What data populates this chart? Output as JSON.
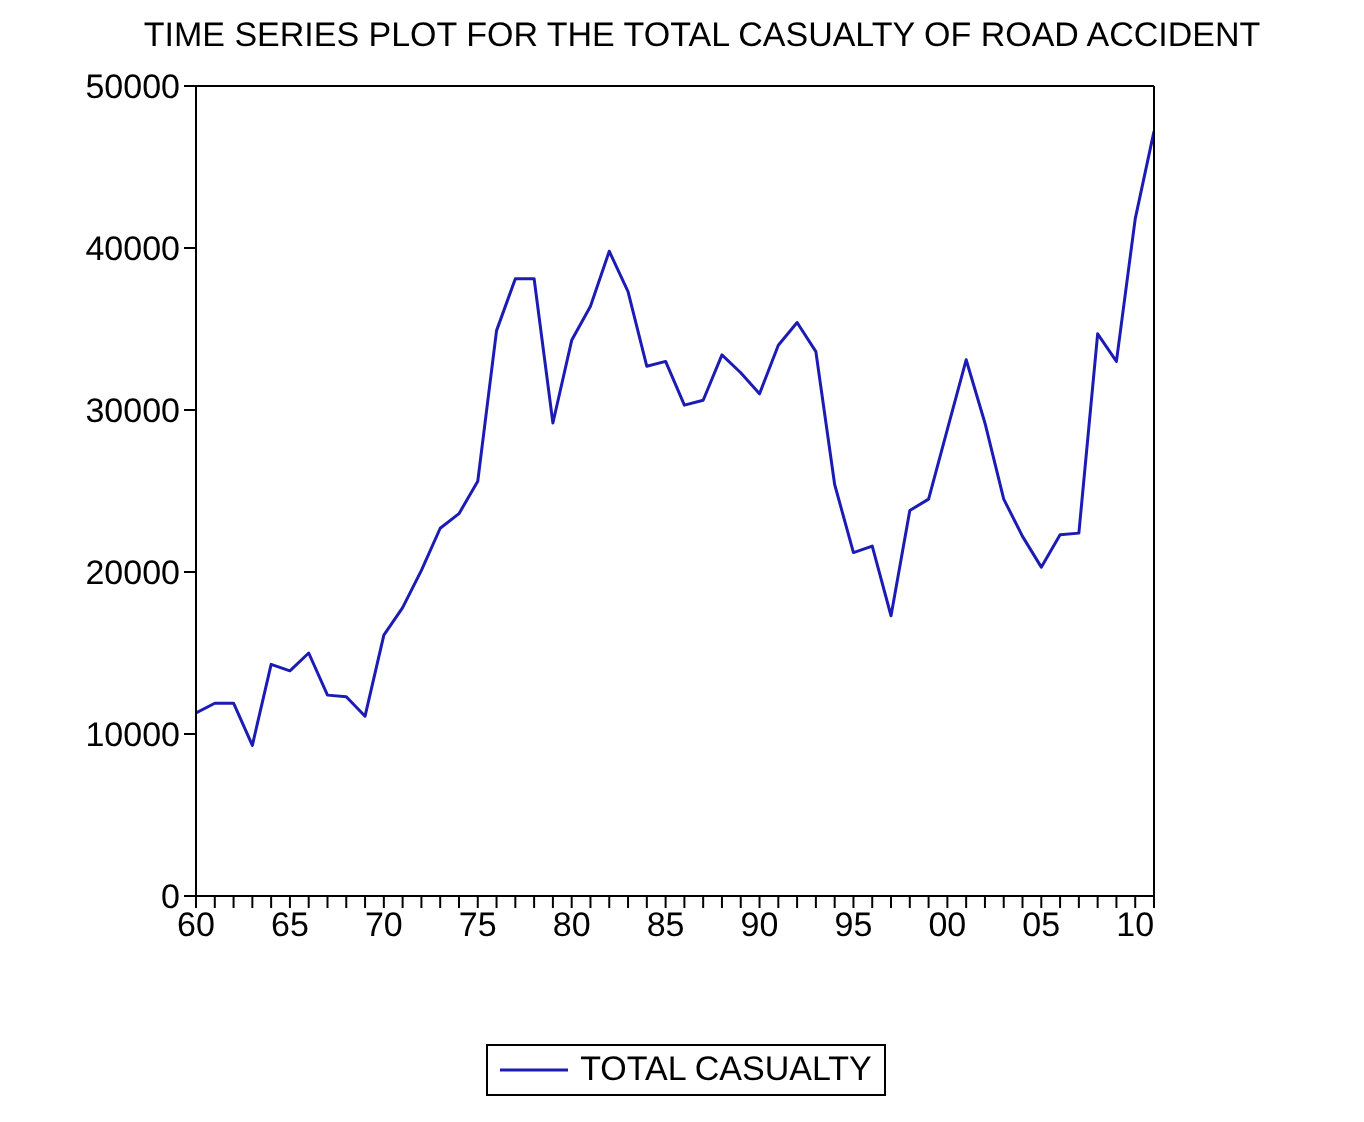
{
  "chart_data": {
    "type": "line",
    "title": "TIME SERIES PLOT FOR THE TOTAL CASUALTY OF ROAD ACCIDENT",
    "x": [
      1960,
      1961,
      1962,
      1963,
      1964,
      1965,
      1966,
      1967,
      1968,
      1969,
      1970,
      1971,
      1972,
      1973,
      1974,
      1975,
      1976,
      1977,
      1978,
      1979,
      1980,
      1981,
      1982,
      1983,
      1984,
      1985,
      1986,
      1987,
      1988,
      1989,
      1990,
      1991,
      1992,
      1993,
      1994,
      1995,
      1996,
      1997,
      1998,
      1999,
      2000,
      2001,
      2002,
      2003,
      2004,
      2005,
      2006,
      2007,
      2008,
      2009,
      2010,
      2011
    ],
    "series": [
      {
        "name": "TOTAL CASUALTY",
        "color": "#1c1cb4",
        "values": [
          11300,
          11900,
          11900,
          9300,
          14300,
          13900,
          15000,
          12400,
          12300,
          11100,
          16100,
          17800,
          20100,
          22700,
          23600,
          25600,
          34900,
          38100,
          38100,
          29200,
          34300,
          36400,
          39800,
          37300,
          32700,
          33000,
          30300,
          30600,
          33400,
          32300,
          31000,
          34000,
          35400,
          33600,
          25400,
          21200,
          21600,
          17300,
          23800,
          24500,
          28800,
          33100,
          29200,
          24500,
          22200,
          20300,
          22300,
          22400,
          34700,
          33000,
          41800,
          47200
        ]
      }
    ],
    "xlim": [
      1960,
      2011
    ],
    "xticks": [
      {
        "value": 1960,
        "label": "60"
      },
      {
        "value": 1961,
        "label": null
      },
      {
        "value": 1962,
        "label": null
      },
      {
        "value": 1963,
        "label": null
      },
      {
        "value": 1964,
        "label": null
      },
      {
        "value": 1965,
        "label": "65"
      },
      {
        "value": 1966,
        "label": null
      },
      {
        "value": 1967,
        "label": null
      },
      {
        "value": 1968,
        "label": null
      },
      {
        "value": 1969,
        "label": null
      },
      {
        "value": 1970,
        "label": "70"
      },
      {
        "value": 1971,
        "label": null
      },
      {
        "value": 1972,
        "label": null
      },
      {
        "value": 1973,
        "label": null
      },
      {
        "value": 1974,
        "label": null
      },
      {
        "value": 1975,
        "label": "75"
      },
      {
        "value": 1976,
        "label": null
      },
      {
        "value": 1977,
        "label": null
      },
      {
        "value": 1978,
        "label": null
      },
      {
        "value": 1979,
        "label": null
      },
      {
        "value": 1980,
        "label": "80"
      },
      {
        "value": 1981,
        "label": null
      },
      {
        "value": 1982,
        "label": null
      },
      {
        "value": 1983,
        "label": null
      },
      {
        "value": 1984,
        "label": null
      },
      {
        "value": 1985,
        "label": "85"
      },
      {
        "value": 1986,
        "label": null
      },
      {
        "value": 1987,
        "label": null
      },
      {
        "value": 1988,
        "label": null
      },
      {
        "value": 1989,
        "label": null
      },
      {
        "value": 1990,
        "label": "90"
      },
      {
        "value": 1991,
        "label": null
      },
      {
        "value": 1992,
        "label": null
      },
      {
        "value": 1993,
        "label": null
      },
      {
        "value": 1994,
        "label": null
      },
      {
        "value": 1995,
        "label": "95"
      },
      {
        "value": 1996,
        "label": null
      },
      {
        "value": 1997,
        "label": null
      },
      {
        "value": 1998,
        "label": null
      },
      {
        "value": 1999,
        "label": null
      },
      {
        "value": 2000,
        "label": "00"
      },
      {
        "value": 2001,
        "label": null
      },
      {
        "value": 2002,
        "label": null
      },
      {
        "value": 2003,
        "label": null
      },
      {
        "value": 2004,
        "label": null
      },
      {
        "value": 2005,
        "label": "05"
      },
      {
        "value": 2006,
        "label": null
      },
      {
        "value": 2007,
        "label": null
      },
      {
        "value": 2008,
        "label": null
      },
      {
        "value": 2009,
        "label": null
      },
      {
        "value": 2010,
        "label": "10"
      },
      {
        "value": 2011,
        "label": null
      }
    ],
    "ylim": [
      0,
      50000
    ],
    "yticks": [
      0,
      10000,
      20000,
      30000,
      40000,
      50000
    ],
    "grid": false,
    "legend": "bottom",
    "marker": "none",
    "line_style": "solid"
  }
}
